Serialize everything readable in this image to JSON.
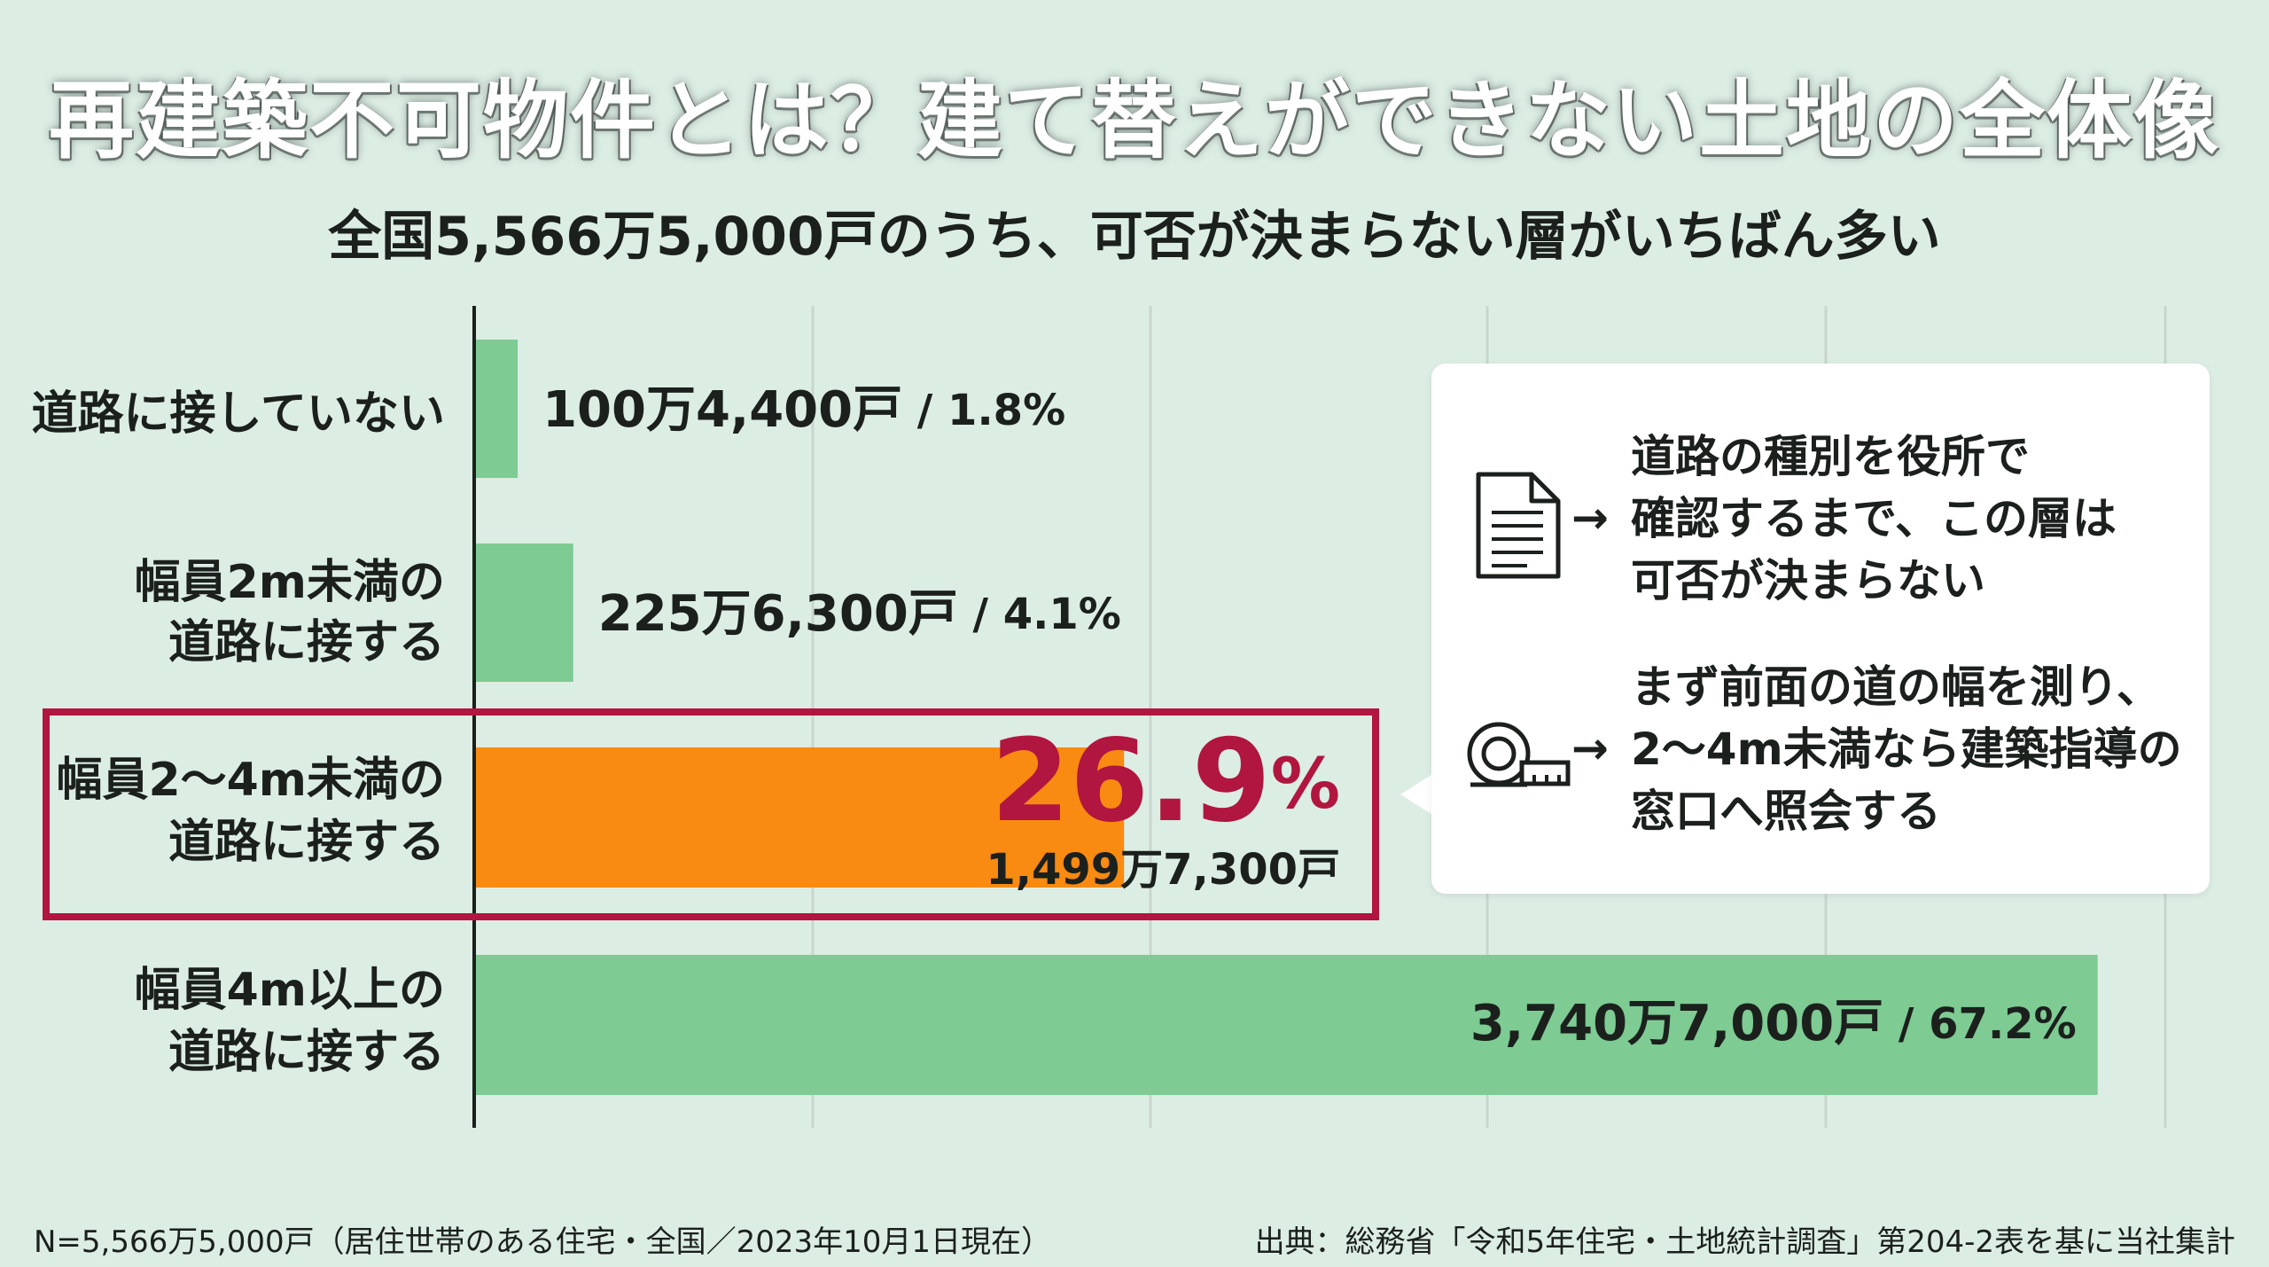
{
  "title": "再建築不可物件とは？建て替えができない土地の全体像",
  "subtitle": "全国5,566万5,000戸のうち、可否が決まらない層がいちばん多い",
  "chart_data": {
    "type": "bar",
    "orientation": "horizontal",
    "categories": [
      [
        "道路に接していない"
      ],
      [
        "幅員2m未満の",
        "道路に接する"
      ],
      [
        "幅員2〜4m未満の",
        "道路に接する"
      ],
      [
        "幅員4m以上の",
        "道路に接する"
      ]
    ],
    "values": [
      1.8,
      4.1,
      26.9,
      67.2
    ],
    "units_count": [
      1004400,
      2256300,
      14997300,
      37407000
    ],
    "labels": [
      {
        "count": "100万4,400戸",
        "pct": " / 1.8%"
      },
      {
        "count": "225万6,300戸",
        "pct": " / 4.1%"
      },
      {
        "count": "1,499万7,300戸",
        "pct_num": "26.9",
        "pct_sign": "%"
      },
      {
        "count": "3,740万7,000戸",
        "pct": " / 67.2%"
      }
    ],
    "highlight_index": 2,
    "xlim": [
      0,
      70
    ],
    "grid": true,
    "colors": {
      "bar": "#7ecb93",
      "highlight_bar": "#f98a12",
      "highlight_frame": "#b0163f",
      "highlight_text": "#b0163f",
      "axis": "#1b201d",
      "grid": "#c8d6ce"
    }
  },
  "callout": {
    "steps": [
      {
        "icon": "document-icon",
        "arrow": "→",
        "lines": [
          "道路の種別を役所で",
          "確認するまで、この層は",
          "可否が決まらない"
        ]
      },
      {
        "icon": "tape-measure-icon",
        "arrow": "→",
        "lines": [
          "まず前面の道の幅を測り、",
          "2〜4m未満なら建築指導の",
          "窓口へ照会する"
        ]
      }
    ]
  },
  "footer": {
    "left": "N=5,566万5,000戸（居住世帯のある住宅・全国／2023年10月1日現在）",
    "right": "出典：総務省「令和5年住宅・土地統計調査」第204-2表を基に当社集計"
  }
}
